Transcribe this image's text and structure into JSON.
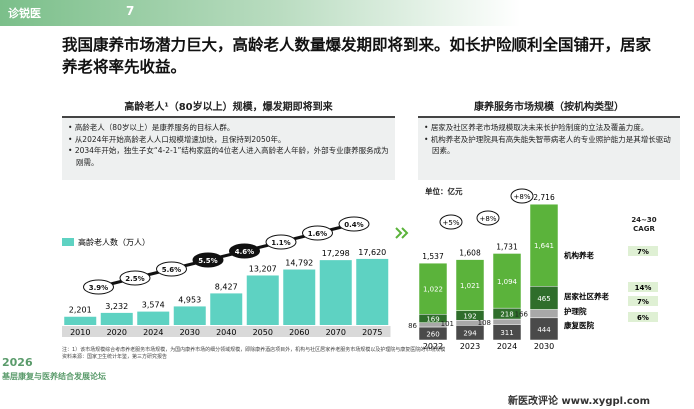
{
  "header": {
    "logo": "诊锐医",
    "page": "7",
    "title": "我国康养市场潜力巨大，高龄老人数量爆发期即将到来。如长护险顺利全国铺开，居家养老将率先收益。"
  },
  "left": {
    "heading": "高龄老人¹（80岁以上）规模，爆发期即将到来",
    "bullets": [
      "高龄老人（80岁以上）是康养服务的目标人群。",
      "从2024年开始高龄老人人口规模增速加快，且保持到2050年。",
      "2034年开始，独生子女“4-2-1”结构家庭的4位老人进入高龄老人年龄，外部专业康养服务成为刚需。"
    ]
  },
  "right": {
    "heading": "康养服务市场规模（按机构类型）",
    "bullets": [
      "居家及社区养老市场规模取决未来长护险制度的立法及覆盖力度。",
      "机构养老及护理院具有高失能失智带病老人的专业照护能力是其增长驱动因素。"
    ],
    "unit": "单位：亿元",
    "cagr_header": "24~30 CAGR",
    "cagr": [
      "7%",
      "14%",
      "7%",
      "6%"
    ]
  },
  "chart_data": [
    {
      "type": "bar",
      "categories": [
        "2010",
        "2020",
        "2024",
        "2030",
        "2040",
        "2050",
        "2060",
        "2070",
        "2075"
      ],
      "series": [
        {
          "name": "高龄老人数（万人）",
          "color": "#5ed2c2",
          "values": [
            2201,
            3232,
            3574,
            4953,
            8427,
            13207,
            14792,
            17298,
            17620
          ],
          "value_labels": [
            "2,201",
            "3,232",
            "3,574",
            "4,953",
            "8,427",
            "13,207",
            "14,792",
            "17,298",
            "17,620"
          ]
        }
      ],
      "ylim": [
        0,
        20000
      ],
      "growth_labels": [
        "3.9%",
        "2.5%",
        "5.6%",
        "5.5%",
        "4.6%",
        "1.1%",
        "1.6%",
        "0.4%"
      ]
    },
    {
      "type": "stacked_bar",
      "categories": [
        "2022",
        "2023",
        "2024",
        "2030"
      ],
      "series": [
        {
          "name": "康复医院",
          "color": "#4a4a4a",
          "values": [
            260,
            294,
            311,
            444
          ]
        },
        {
          "name": "护理院",
          "color": "#a8a8a8",
          "values": [
            86,
            101,
            108,
            166
          ]
        },
        {
          "name": "居家社区养老",
          "color": "#2f6e2b",
          "values": [
            169,
            192,
            218,
            465
          ]
        },
        {
          "name": "机构养老",
          "color": "#5bb33b",
          "values": [
            1022,
            1021,
            1094,
            1641
          ],
          "value_labels": [
            "1,022",
            "1,021",
            "1,094",
            "1,641"
          ]
        }
      ],
      "totals": [
        1537,
        1608,
        1731,
        2716
      ],
      "total_labels": [
        "1,537",
        "1,608",
        "1,731",
        "2,716"
      ],
      "ylim": [
        0,
        3000
      ],
      "growth_labels": [
        "+5%",
        "+8%",
        "+8%"
      ]
    }
  ],
  "footer": {
    "note": "注：1）该市场规模综合考虑养老服务市场规模，为国内康养市场的细分领域规模，即除康养酒店项目外，机构与社区居家养老服务市场规模以及护理院与康复医院的市场规模",
    "source": "资料来源：国家卫生统计年鉴，第三方研究报告",
    "event_year": "2026",
    "event": "基层康复与医养结合发展论坛",
    "watermark": "新医改评论 www.xygpl.com"
  }
}
